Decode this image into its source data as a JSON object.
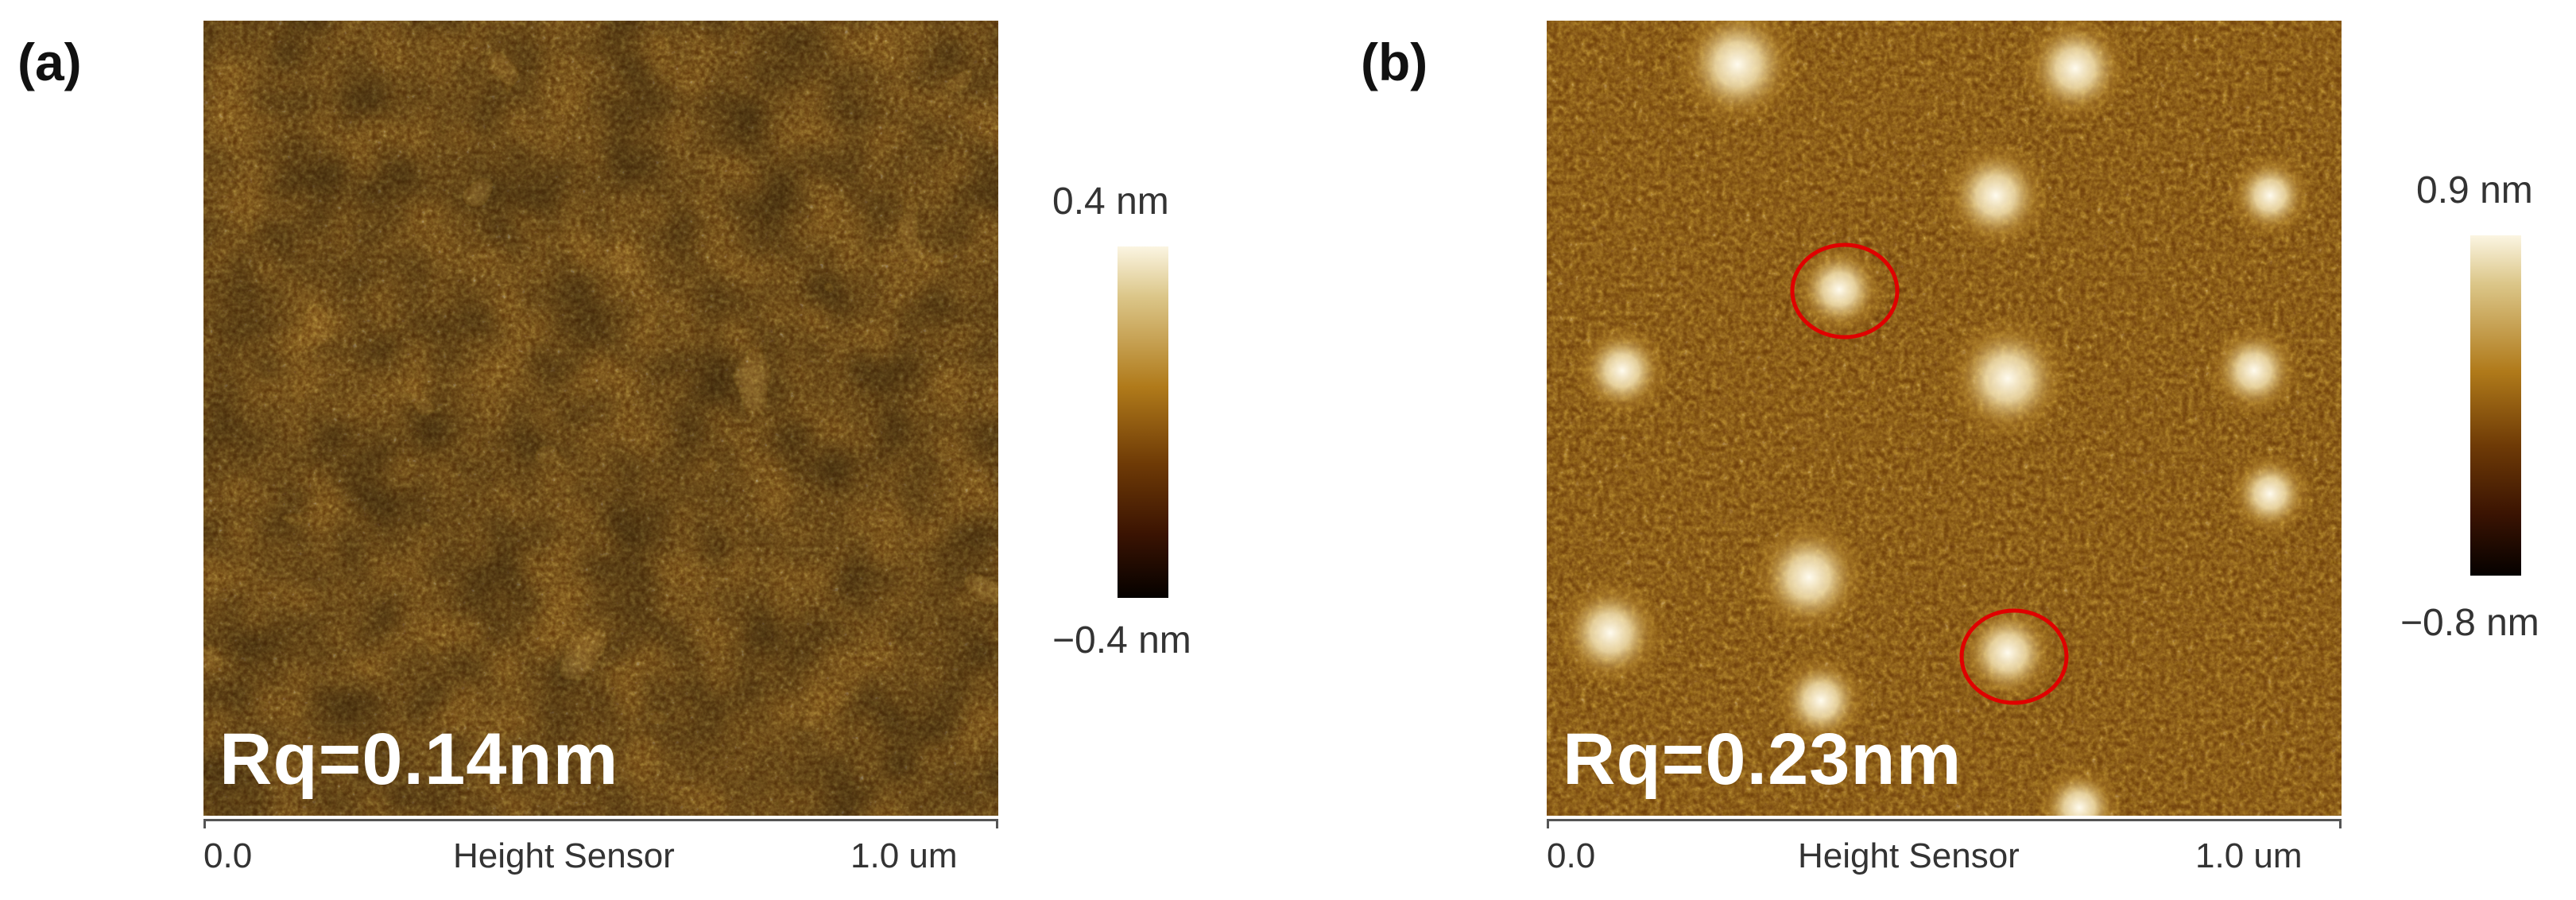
{
  "panels": [
    {
      "label": "(a)",
      "rq": "Rq=0.14nm",
      "axis": {
        "start": "0.0",
        "label": "Height Sensor",
        "end": "1.0 um"
      },
      "scale": {
        "max": "0.4 nm",
        "min": "−0.4 nm"
      }
    },
    {
      "label": "(b)",
      "rq": "Rq=0.23nm",
      "axis": {
        "start": "0.0",
        "label": "Height Sensor",
        "end": "1.0 um"
      },
      "scale": {
        "max": "0.9 nm",
        "min": "−0.8 nm"
      }
    }
  ],
  "colors": {
    "afm_dark": "#3a1302",
    "afm_mid": "#8a5210",
    "afm_bright": "#fbf5e2",
    "highlight_circle": "#e00000"
  }
}
